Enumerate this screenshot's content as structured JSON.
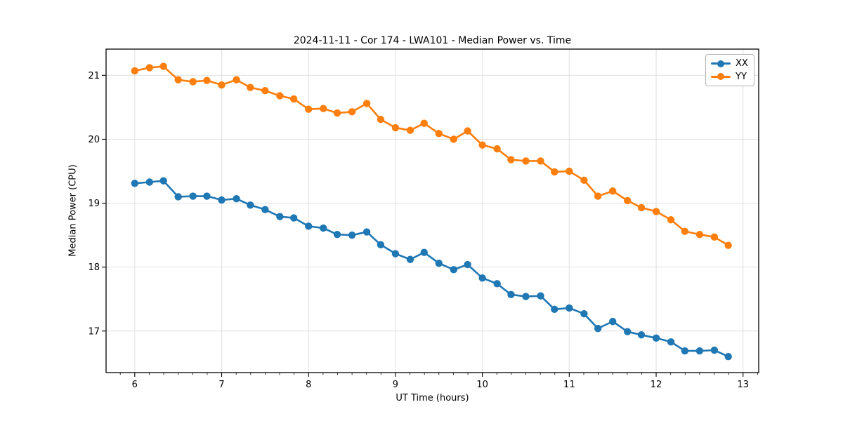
{
  "figure": {
    "title": "2024-11-11 - Cor 174 - LWA101 - Median Power vs. Time"
  },
  "chart_data": {
    "type": "line",
    "title": "2024-11-11 - Cor 174 - LWA101 - Median Power vs. Time",
    "xlabel": "UT Time (hours)",
    "ylabel": "Median Power (CPU)",
    "xlim": [
      5.67,
      13.18
    ],
    "ylim": [
      16.35,
      21.41
    ],
    "xticks": [
      6,
      7,
      8,
      9,
      10,
      11,
      12,
      13
    ],
    "yticks": [
      17,
      18,
      19,
      20,
      21
    ],
    "x_minor_step": 0.16667,
    "grid": true,
    "grid_color": "#e0e0e0",
    "legend_position": "upper right",
    "x": [
      6.0,
      6.17,
      6.33,
      6.5,
      6.67,
      6.83,
      7.0,
      7.17,
      7.33,
      7.5,
      7.67,
      7.83,
      8.0,
      8.17,
      8.33,
      8.5,
      8.67,
      8.83,
      9.0,
      9.17,
      9.33,
      9.5,
      9.67,
      9.83,
      10.0,
      10.17,
      10.33,
      10.5,
      10.67,
      10.83,
      11.0,
      11.17,
      11.33,
      11.5,
      11.67,
      11.83,
      12.0,
      12.17,
      12.33,
      12.5,
      12.67,
      12.83
    ],
    "series": [
      {
        "name": "XX",
        "color": "#1f77b4",
        "values": [
          19.31,
          19.33,
          19.35,
          19.1,
          19.11,
          19.11,
          19.05,
          19.07,
          18.97,
          18.9,
          18.79,
          18.77,
          18.64,
          18.61,
          18.51,
          18.5,
          18.55,
          18.35,
          18.21,
          18.12,
          18.23,
          18.06,
          17.96,
          18.04,
          17.83,
          17.74,
          17.57,
          17.54,
          17.55,
          17.34,
          17.36,
          17.27,
          17.04,
          17.15,
          16.99,
          16.94,
          16.89,
          16.83,
          16.69,
          16.69,
          16.7,
          16.6
        ]
      },
      {
        "name": "YY",
        "color": "#ff7f0e",
        "values": [
          21.07,
          21.12,
          21.14,
          20.93,
          20.9,
          20.92,
          20.85,
          20.93,
          20.81,
          20.76,
          20.68,
          20.63,
          20.47,
          20.48,
          20.41,
          20.43,
          20.56,
          20.31,
          20.18,
          20.14,
          20.25,
          20.09,
          20.0,
          20.13,
          19.91,
          19.85,
          19.68,
          19.66,
          19.66,
          19.49,
          19.5,
          19.36,
          19.11,
          19.19,
          19.04,
          18.93,
          18.87,
          18.74,
          18.56,
          18.51,
          18.47,
          18.34
        ]
      }
    ]
  }
}
